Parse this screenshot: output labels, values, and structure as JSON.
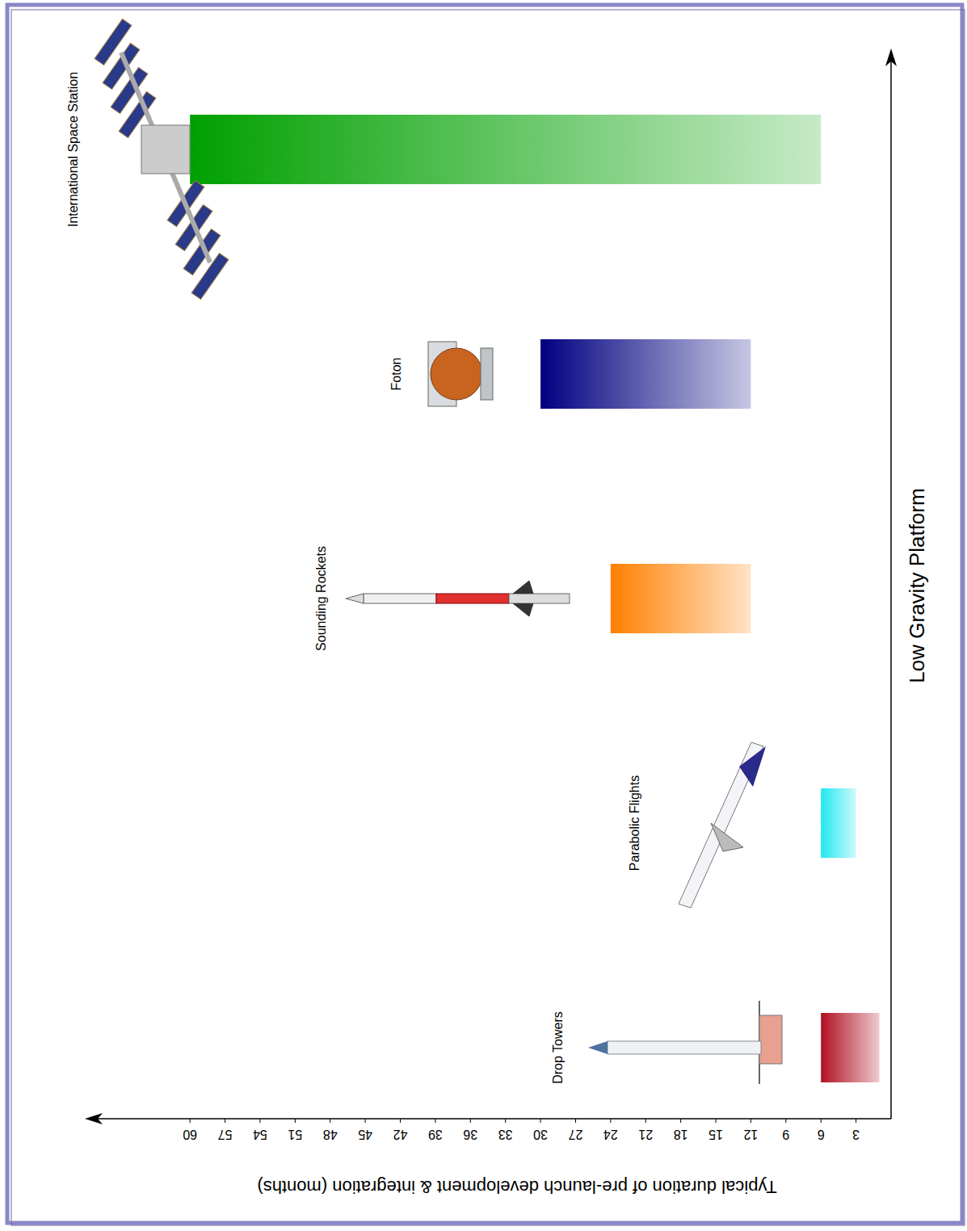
{
  "chart_data": {
    "type": "bar",
    "orientation": "horizontal",
    "y_label": "Typical duration of pre-launch development & integration (months)",
    "x_label": "Low Gravity Platform",
    "categories": [
      "Drop Towers",
      "Parabolic Flights",
      "Sounding Rockets",
      "Foton",
      "International Space Station"
    ],
    "base": [
      1,
      3,
      12,
      12,
      6
    ],
    "values": [
      6,
      6,
      24,
      30,
      60
    ],
    "colors": [
      "#b01020",
      "#20e8f0",
      "#ff8000",
      "#000080",
      "#00a000"
    ],
    "ylim": [
      0,
      69
    ],
    "yticks": [
      3,
      6,
      9,
      12,
      15,
      18,
      21,
      24,
      27,
      30,
      33,
      36,
      39,
      42,
      45,
      48,
      51,
      54,
      57,
      60
    ],
    "grid": false
  }
}
